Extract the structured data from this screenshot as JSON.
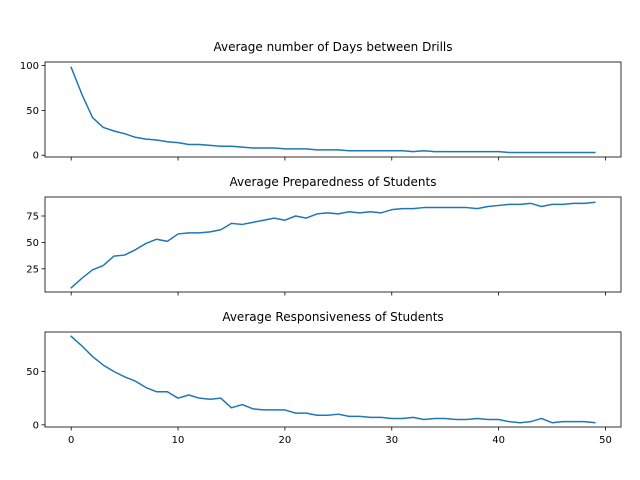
{
  "figure": {
    "background": "#ffffff",
    "line_color": "#1f77b4"
  },
  "chart_data": [
    {
      "type": "line",
      "title": "Average number of Days between Drills",
      "xlabel": "",
      "ylabel": "",
      "xlim": [
        -2.45,
        51.45
      ],
      "ylim": [
        -2,
        104
      ],
      "xticks": [
        0,
        10,
        20,
        30,
        40,
        50
      ],
      "show_xticklabels": false,
      "yticks": [
        0,
        50,
        100
      ],
      "ytick_labels": [
        "0",
        "50",
        "100"
      ],
      "grid": false,
      "x": [
        0,
        1,
        2,
        3,
        4,
        5,
        6,
        7,
        8,
        9,
        10,
        11,
        12,
        13,
        14,
        15,
        16,
        17,
        18,
        19,
        20,
        21,
        22,
        23,
        24,
        25,
        26,
        27,
        28,
        29,
        30,
        31,
        32,
        33,
        34,
        35,
        36,
        37,
        38,
        39,
        40,
        41,
        42,
        43,
        44,
        45,
        46,
        47,
        48,
        49
      ],
      "values": [
        98,
        68,
        42,
        31,
        27,
        24,
        20,
        18,
        17,
        15,
        14,
        12,
        12,
        11,
        10,
        10,
        9,
        8,
        8,
        8,
        7,
        7,
        7,
        6,
        6,
        6,
        5,
        5,
        5,
        5,
        5,
        5,
        4,
        5,
        4,
        4,
        4,
        4,
        4,
        4,
        4,
        3,
        3,
        3,
        3,
        3,
        3,
        3,
        3,
        3
      ]
    },
    {
      "type": "line",
      "title": "Average Preparedness of Students",
      "xlabel": "",
      "ylabel": "",
      "xlim": [
        -2.45,
        51.45
      ],
      "ylim": [
        3,
        93
      ],
      "xticks": [
        0,
        10,
        20,
        30,
        40,
        50
      ],
      "show_xticklabels": false,
      "yticks": [
        25,
        50,
        75
      ],
      "ytick_labels": [
        "25",
        "50",
        "75"
      ],
      "grid": false,
      "x": [
        0,
        1,
        2,
        3,
        4,
        5,
        6,
        7,
        8,
        9,
        10,
        11,
        12,
        13,
        14,
        15,
        16,
        17,
        18,
        19,
        20,
        21,
        22,
        23,
        24,
        25,
        26,
        27,
        28,
        29,
        30,
        31,
        32,
        33,
        34,
        35,
        36,
        37,
        38,
        39,
        40,
        41,
        42,
        43,
        44,
        45,
        46,
        47,
        48,
        49
      ],
      "values": [
        7,
        16,
        24,
        28,
        37,
        38,
        43,
        49,
        53,
        51,
        58,
        59,
        59,
        60,
        62,
        68,
        67,
        69,
        71,
        73,
        71,
        75,
        73,
        77,
        78,
        77,
        79,
        78,
        79,
        78,
        81,
        82,
        82,
        83,
        83,
        83,
        83,
        83,
        82,
        84,
        85,
        86,
        86,
        87,
        84,
        86,
        86,
        87,
        87,
        88
      ]
    },
    {
      "type": "line",
      "title": "Average Responsiveness of Students",
      "xlabel": "",
      "ylabel": "",
      "xlim": [
        -2.45,
        51.45
      ],
      "ylim": [
        -2,
        87
      ],
      "xticks": [
        0,
        10,
        20,
        30,
        40,
        50
      ],
      "xtick_labels": [
        "0",
        "10",
        "20",
        "30",
        "40",
        "50"
      ],
      "show_xticklabels": true,
      "yticks": [
        0,
        50
      ],
      "ytick_labels": [
        "0",
        "50"
      ],
      "grid": false,
      "x": [
        0,
        1,
        2,
        3,
        4,
        5,
        6,
        7,
        8,
        9,
        10,
        11,
        12,
        13,
        14,
        15,
        16,
        17,
        18,
        19,
        20,
        21,
        22,
        23,
        24,
        25,
        26,
        27,
        28,
        29,
        30,
        31,
        32,
        33,
        34,
        35,
        36,
        37,
        38,
        39,
        40,
        41,
        42,
        43,
        44,
        45,
        46,
        47,
        48,
        49
      ],
      "values": [
        83,
        74,
        64,
        56,
        50,
        45,
        41,
        35,
        31,
        31,
        25,
        28,
        25,
        24,
        25,
        16,
        19,
        15,
        14,
        14,
        14,
        11,
        11,
        9,
        9,
        10,
        8,
        8,
        7,
        7,
        6,
        6,
        7,
        5,
        6,
        6,
        5,
        5,
        6,
        5,
        5,
        3,
        2,
        3,
        6,
        2,
        3,
        3,
        3,
        2
      ]
    }
  ]
}
